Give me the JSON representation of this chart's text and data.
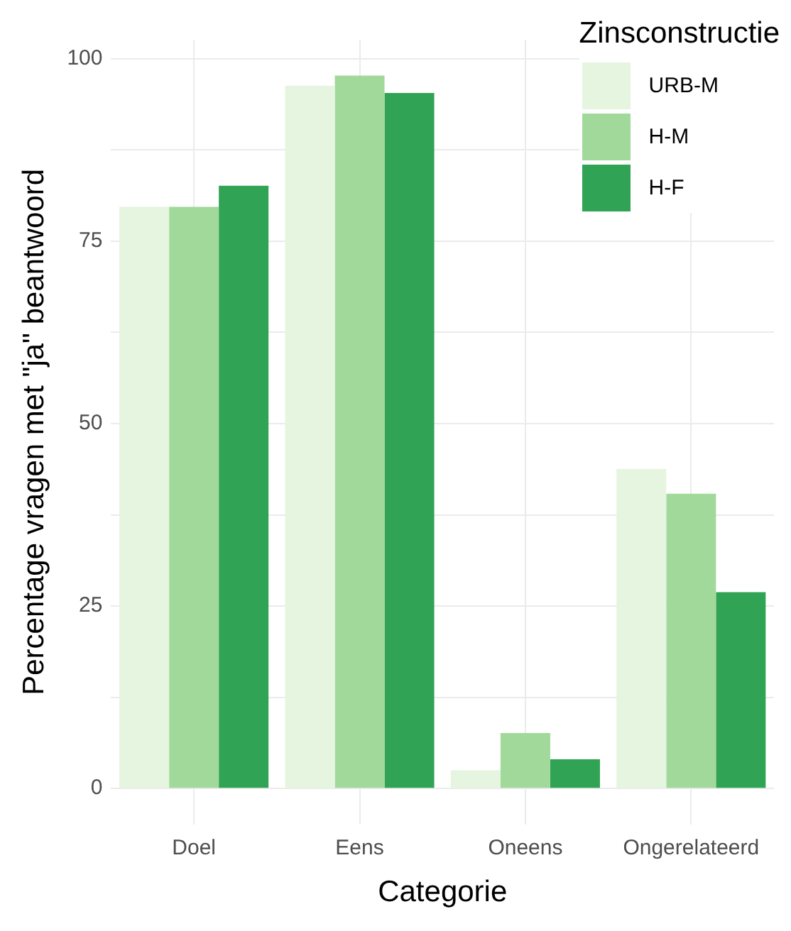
{
  "chart_data": {
    "type": "bar",
    "xlabel": "Categorie",
    "ylabel": "Percentage vragen met \"ja\" beantwoord",
    "legend_title": "Zinsconstructie",
    "categories": [
      "Doel",
      "Eens",
      "Oneens",
      "Ongerelateerd"
    ],
    "series": [
      {
        "name": "URB-M",
        "color": "#e5f5e0",
        "values": [
          79.7,
          96.3,
          2.5,
          43.8
        ]
      },
      {
        "name": "H-M",
        "color": "#a1d99b",
        "values": [
          79.7,
          97.7,
          7.6,
          40.4
        ]
      },
      {
        "name": "H-F",
        "color": "#31a354",
        "values": [
          82.6,
          95.3,
          4.0,
          26.9
        ]
      }
    ],
    "ylim": [
      -4.9,
      102.6
    ],
    "yticks": [
      0,
      {
        "value": 12.5,
        "label": null
      },
      25,
      {
        "value": 37.5,
        "label": null
      },
      50,
      {
        "value": 62.5,
        "label": null
      },
      75,
      {
        "value": 87.5,
        "label": null
      },
      100
    ],
    "grid": true,
    "legend": "top right"
  }
}
